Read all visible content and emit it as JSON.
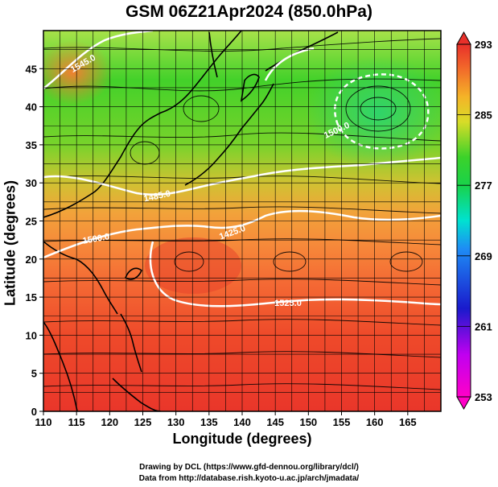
{
  "title": "GSM 06Z21Apr2024 (850.0hPa)",
  "x_axis": {
    "label": "Longitude (degrees)",
    "min": 110,
    "max": 170,
    "ticks": [
      110,
      115,
      120,
      125,
      130,
      135,
      140,
      145,
      150,
      155,
      160,
      165
    ]
  },
  "y_axis": {
    "label": "Latitude  (degrees)",
    "min": 0,
    "max": 50,
    "ticks": [
      0,
      5,
      10,
      15,
      20,
      25,
      30,
      35,
      40,
      45
    ]
  },
  "colorbar": {
    "min": 253,
    "max": 293,
    "tick_labels": [
      253,
      261,
      269,
      277,
      285,
      293
    ]
  },
  "contour_labels": [
    {
      "text": "1485.0"
    },
    {
      "text": "1425.0"
    },
    {
      "text": "1500.0"
    },
    {
      "text": "1545.0"
    },
    {
      "text": "1500.0"
    },
    {
      "text": "1525.0"
    }
  ],
  "footer": {
    "line1": "Drawing by DCL (https://www.gfd-dennou.org/library/dcl/)",
    "line2": "Data from http://database.rish.kyoto-u.ac.jp/arch/jmadata/"
  }
}
